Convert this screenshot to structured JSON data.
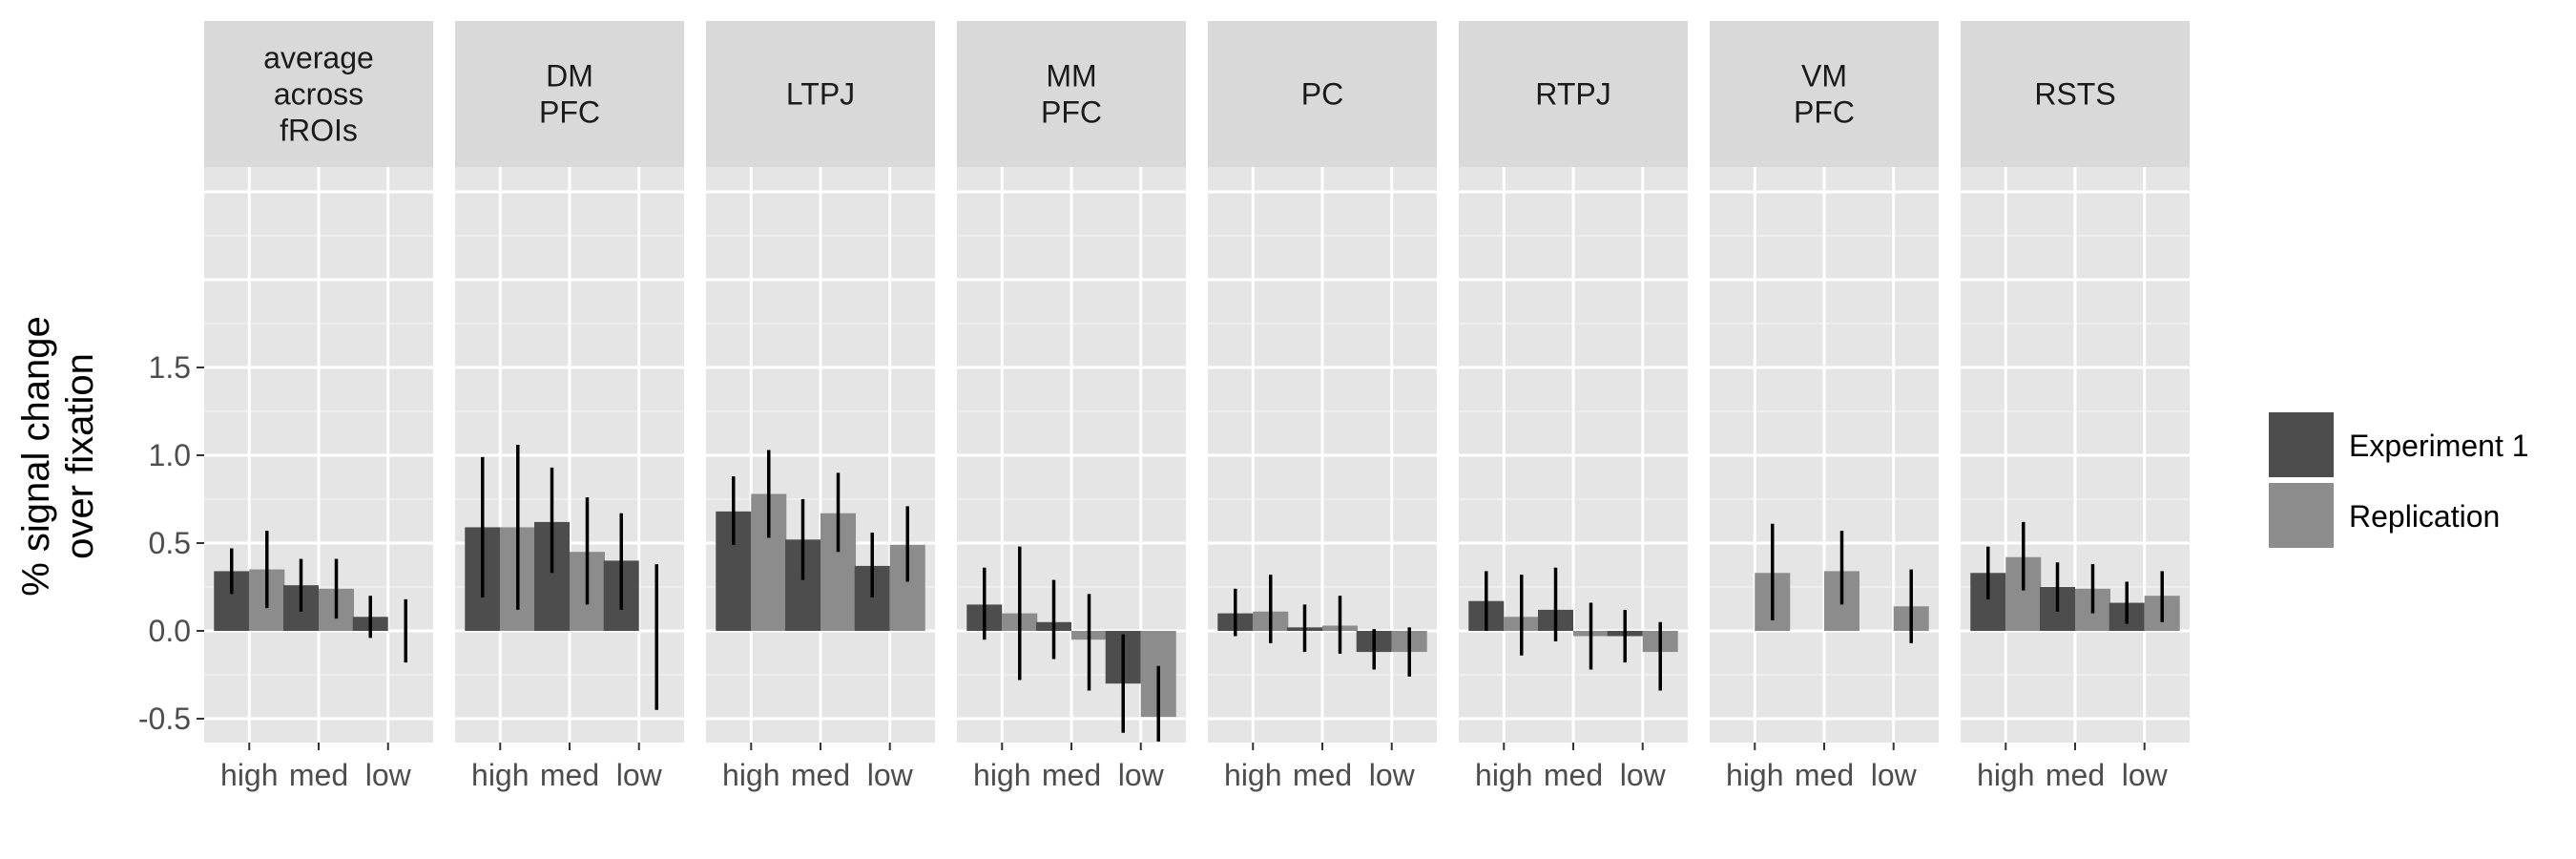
{
  "chart_data": {
    "type": "bar",
    "ylabel": "% signal change\nover fixation",
    "xlabel": "",
    "ylim": [
      -0.63,
      3.0
    ],
    "yticks": [
      -0.5,
      0.0,
      0.5,
      1.0,
      1.5
    ],
    "ytick_labels": [
      "-0.5",
      "0.0",
      "0.5",
      "1.0",
      "1.5"
    ],
    "categories": [
      "high",
      "med",
      "low"
    ],
    "grid": true,
    "legend_position": "right",
    "series": [
      {
        "name": "Experiment 1",
        "color": "#4d4d4d"
      },
      {
        "name": "Replication",
        "color": "#8c8c8c"
      }
    ],
    "facets": [
      {
        "label": "average\nacross\nfROIs",
        "values": {
          "Experiment 1": [
            0.34,
            0.26,
            0.08
          ],
          "Replication": [
            0.35,
            0.24,
            0.0
          ]
        },
        "errors": {
          "Experiment 1": [
            [
              0.21,
              0.47
            ],
            [
              0.11,
              0.41
            ],
            [
              -0.04,
              0.2
            ]
          ],
          "Replication": [
            [
              0.13,
              0.57
            ],
            [
              0.07,
              0.41
            ],
            [
              -0.18,
              0.18
            ]
          ]
        }
      },
      {
        "label": "DM\nPFC",
        "values": {
          "Experiment 1": [
            0.59,
            0.62,
            0.4
          ],
          "Replication": [
            0.59,
            0.45,
            0.0
          ]
        },
        "errors": {
          "Experiment 1": [
            [
              0.19,
              0.99
            ],
            [
              0.33,
              0.93
            ],
            [
              0.12,
              0.67
            ]
          ],
          "Replication": [
            [
              0.12,
              1.06
            ],
            [
              0.15,
              0.76
            ],
            [
              -0.45,
              0.38
            ]
          ]
        }
      },
      {
        "label": "LTPJ",
        "values": {
          "Experiment 1": [
            0.68,
            0.52,
            0.37
          ],
          "Replication": [
            0.78,
            0.67,
            0.49
          ]
        },
        "errors": {
          "Experiment 1": [
            [
              0.49,
              0.88
            ],
            [
              0.29,
              0.75
            ],
            [
              0.19,
              0.56
            ]
          ],
          "Replication": [
            [
              0.53,
              1.03
            ],
            [
              0.45,
              0.9
            ],
            [
              0.28,
              0.71
            ]
          ]
        }
      },
      {
        "label": "MM\nPFC",
        "values": {
          "Experiment 1": [
            0.15,
            0.05,
            -0.3
          ],
          "Replication": [
            0.1,
            -0.05,
            -0.49
          ]
        },
        "errors": {
          "Experiment 1": [
            [
              -0.05,
              0.36
            ],
            [
              -0.16,
              0.29
            ],
            [
              -0.58,
              -0.02
            ]
          ],
          "Replication": [
            [
              -0.28,
              0.48
            ],
            [
              -0.34,
              0.21
            ],
            [
              -0.65,
              -0.2
            ]
          ]
        }
      },
      {
        "label": "PC",
        "values": {
          "Experiment 1": [
            0.1,
            0.02,
            -0.12
          ],
          "Replication": [
            0.11,
            0.03,
            -0.12
          ]
        },
        "errors": {
          "Experiment 1": [
            [
              -0.03,
              0.24
            ],
            [
              -0.12,
              0.15
            ],
            [
              -0.22,
              0.01
            ]
          ],
          "Replication": [
            [
              -0.07,
              0.32
            ],
            [
              -0.13,
              0.2
            ],
            [
              -0.26,
              0.02
            ]
          ]
        }
      },
      {
        "label": "RTPJ",
        "values": {
          "Experiment 1": [
            0.17,
            0.12,
            -0.03
          ],
          "Replication": [
            0.08,
            -0.03,
            -0.12
          ]
        },
        "errors": {
          "Experiment 1": [
            [
              0.0,
              0.34
            ],
            [
              -0.06,
              0.36
            ],
            [
              -0.18,
              0.12
            ]
          ],
          "Replication": [
            [
              -0.14,
              0.32
            ],
            [
              -0.22,
              0.16
            ],
            [
              -0.34,
              0.05
            ]
          ]
        }
      },
      {
        "label": "VM\nPFC",
        "values": {
          "Experiment 1": [
            null,
            null,
            null
          ],
          "Replication": [
            0.33,
            0.34,
            0.14
          ]
        },
        "errors": {
          "Experiment 1": [
            null,
            null,
            null
          ],
          "Replication": [
            [
              0.06,
              0.61
            ],
            [
              0.15,
              0.57
            ],
            [
              -0.07,
              0.35
            ]
          ]
        }
      },
      {
        "label": "RSTS",
        "values": {
          "Experiment 1": [
            0.33,
            0.25,
            0.16
          ],
          "Replication": [
            0.42,
            0.24,
            0.2
          ]
        },
        "errors": {
          "Experiment 1": [
            [
              0.18,
              0.48
            ],
            [
              0.11,
              0.39
            ],
            [
              0.04,
              0.28
            ]
          ],
          "Replication": [
            [
              0.23,
              0.62
            ],
            [
              0.1,
              0.38
            ],
            [
              0.05,
              0.34
            ]
          ]
        }
      }
    ]
  }
}
